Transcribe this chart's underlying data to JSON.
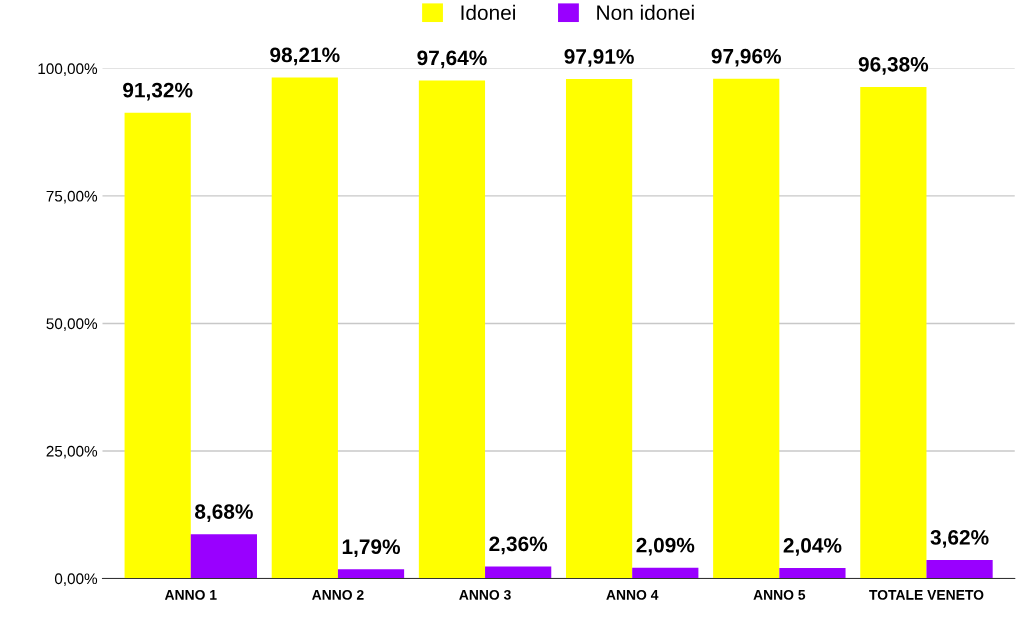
{
  "chart_data": {
    "type": "bar",
    "categories": [
      "ANNO 1",
      "ANNO 2",
      "ANNO 3",
      "ANNO 4",
      "ANNO 5",
      "TOTALE VENETO"
    ],
    "series": [
      {
        "name": "Idonei",
        "color": "#ffff00",
        "values": [
          91.32,
          98.21,
          97.64,
          97.91,
          97.96,
          96.38
        ],
        "value_labels": [
          "91,32%",
          "98,21%",
          "97,64%",
          "97,91%",
          "97,96%",
          "96,38%"
        ]
      },
      {
        "name": "Non idonei",
        "color": "#9900ff",
        "values": [
          8.68,
          1.79,
          2.36,
          2.09,
          2.04,
          3.62
        ],
        "value_labels": [
          "8,68%",
          "1,79%",
          "2,36%",
          "2,09%",
          "2,04%",
          "3,62%"
        ]
      }
    ],
    "ylim": [
      0,
      100
    ],
    "yticks": [
      {
        "value": 0,
        "label": "0,00%"
      },
      {
        "value": 25,
        "label": "25,00%"
      },
      {
        "value": 50,
        "label": "50,00%"
      },
      {
        "value": 75,
        "label": "75,00%"
      },
      {
        "value": 100,
        "label": "100,00%"
      }
    ],
    "grid": "y",
    "legend": "top"
  }
}
